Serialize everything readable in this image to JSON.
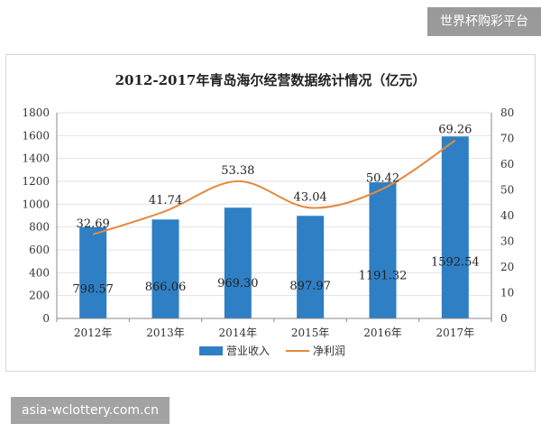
{
  "site_badge": "世界杯购彩平台",
  "domain_badge": "asia-wclottery.com.cn",
  "colors": {
    "bar": "#2e7fc4",
    "line": "#e38a3e",
    "grid": "#e2e2e2",
    "axis": "#8a8a8a"
  },
  "chart_data": {
    "type": "bar",
    "title": "2012-2017年青岛海尔经营数据统计情况（亿元）",
    "categories": [
      "2012年",
      "2013年",
      "2014年",
      "2015年",
      "2016年",
      "2017年"
    ],
    "ylim": [
      0,
      1800
    ],
    "y_ticks": [
      0,
      200,
      400,
      600,
      800,
      1000,
      1200,
      1400,
      1600,
      1800
    ],
    "y2lim": [
      0,
      80
    ],
    "y2_ticks": [
      0,
      10,
      20,
      30,
      40,
      50,
      60,
      70,
      80
    ],
    "grid": true,
    "legend_position": "bottom",
    "series": [
      {
        "name": "营业收入",
        "kind": "bar",
        "axis": "left",
        "values": [
          798.57,
          866.06,
          969.3,
          897.97,
          1191.32,
          1592.54
        ],
        "labels": [
          "798.57",
          "866.06",
          "969.30",
          "897.97",
          "1191.32",
          "1592.54"
        ]
      },
      {
        "name": "净利润",
        "kind": "line",
        "axis": "right",
        "values": [
          32.69,
          41.74,
          53.38,
          43.04,
          50.42,
          69.26
        ],
        "labels": [
          "32.69",
          "41.74",
          "53.38",
          "43.04",
          "50.42",
          "69.26"
        ]
      }
    ]
  }
}
